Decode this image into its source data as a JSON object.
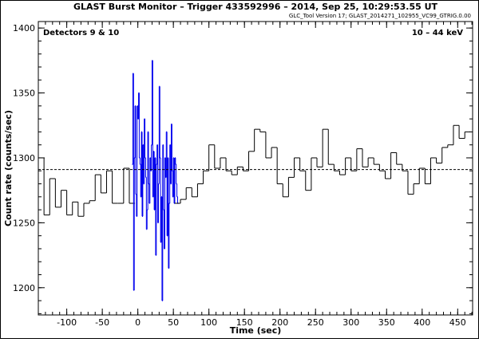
{
  "chart_data": {
    "type": "step",
    "title": "GLAST Burst Monitor  –  Trigger 433592996  –  2014, Sep 25, 10:29:53.55 UT",
    "subtitle": "GLC_Tool Version 17; GLAST_2014271_102955_VC99_GTRIG.0.00",
    "annotations": [
      "Detectors 9 & 10",
      "10 – 44 keV"
    ],
    "xlabel": "Time (sec)",
    "ylabel": "Count rate (counts/sec)",
    "xlim": [
      -140,
      471
    ],
    "ylim": [
      1179,
      1405
    ],
    "xticks": [
      -100,
      -50,
      0,
      50,
      100,
      150,
      200,
      250,
      300,
      350,
      400,
      450
    ],
    "yticks": [
      1200,
      1250,
      1300,
      1350,
      1400
    ],
    "background": 1291,
    "series": [
      {
        "color": "#000000",
        "bins": [
          -140,
          -132,
          -124,
          -116,
          -108,
          -100,
          -92,
          -84,
          -76,
          -68,
          -60,
          -52,
          -44,
          -36,
          -28,
          -20,
          -12,
          -4
        ],
        "values": [
          1300,
          1256,
          1284,
          1262,
          1275,
          1256,
          1266,
          1255,
          1265,
          1267,
          1287,
          1273,
          1290,
          1265,
          1265,
          1292,
          1265
        ]
      },
      {
        "color": "#0000ee",
        "bins": [
          -8,
          -7,
          -6,
          -5,
          -4,
          -3,
          -2,
          -1,
          0,
          1,
          2,
          3,
          4,
          5,
          6,
          7,
          8,
          9,
          10,
          11,
          12,
          13,
          14,
          15,
          16,
          17,
          18,
          19,
          20,
          21,
          22,
          23,
          24,
          25,
          26,
          27,
          28,
          29,
          30,
          31,
          32,
          33,
          34,
          35,
          36,
          37,
          38,
          39,
          40,
          41,
          42,
          43,
          44,
          45,
          46,
          47,
          48,
          49,
          50,
          51,
          52,
          53,
          54,
          55,
          56,
          57
        ],
        "values": [
          1295,
          1365,
          1198,
          1300,
          1340,
          1272,
          1255,
          1340,
          1330,
          1350,
          1300,
          1295,
          1270,
          1320,
          1255,
          1310,
          1280,
          1330,
          1300,
          1285,
          1245,
          1260,
          1320,
          1280,
          1265,
          1300,
          1290,
          1310,
          1375,
          1270,
          1305,
          1260,
          1300,
          1225,
          1295,
          1310,
          1250,
          1280,
          1355,
          1300,
          1235,
          1270,
          1190,
          1310,
          1260,
          1230,
          1300,
          1285,
          1320,
          1240,
          1300,
          1215,
          1265,
          1310,
          1280,
          1326,
          1290,
          1270,
          1300,
          1265,
          1300,
          1295,
          1280,
          1270,
          1265
        ]
      },
      {
        "color": "#000000",
        "bins": [
          52,
          60,
          68,
          76,
          84,
          92,
          100,
          108,
          116,
          124,
          132,
          140,
          148,
          156,
          164,
          172,
          180,
          188,
          196,
          204,
          212,
          220,
          228,
          236,
          244,
          252,
          260,
          268,
          276,
          284,
          292,
          300,
          308,
          316,
          324,
          332,
          340,
          348,
          356,
          364,
          372,
          380,
          388,
          396,
          404,
          412,
          420,
          428,
          436,
          444,
          452,
          460,
          468
        ],
        "values": [
          1265,
          1268,
          1277,
          1270,
          1280,
          1290,
          1310,
          1292,
          1300,
          1290,
          1287,
          1293,
          1290,
          1305,
          1322,
          1320,
          1300,
          1308,
          1280,
          1270,
          1285,
          1300,
          1290,
          1275,
          1300,
          1293,
          1322,
          1295,
          1290,
          1287,
          1300,
          1290,
          1307,
          1293,
          1300,
          1295,
          1290,
          1284,
          1304,
          1295,
          1290,
          1272,
          1280,
          1292,
          1280,
          1300,
          1296,
          1308,
          1310,
          1325,
          1315,
          1320
        ]
      }
    ]
  }
}
